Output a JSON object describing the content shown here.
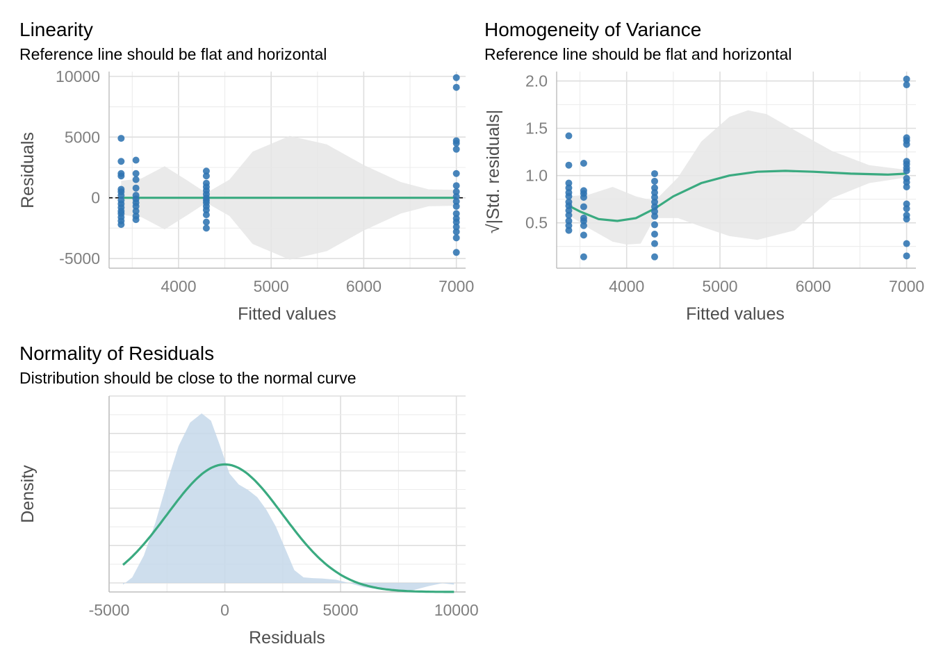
{
  "chart_data": [
    {
      "type": "scatter",
      "title": "Linearity",
      "subtitle": "Reference line should be flat and horizontal",
      "xlabel": "Fitted values",
      "ylabel": "Residuals",
      "xlim": [
        3250,
        7100
      ],
      "ylim": [
        -5800,
        10400
      ],
      "xticks": [
        4000,
        5000,
        6000,
        7000
      ],
      "xtick_labels": [
        "4000",
        "5000",
        "6000",
        "7000"
      ],
      "yticks": [
        -5000,
        0,
        5000,
        10000
      ],
      "ytick_labels": [
        "-5000",
        "0",
        "5000",
        "10000"
      ],
      "grid": true,
      "reference_line": 0,
      "points": [
        {
          "x": 3380,
          "ys": [
            4900,
            3000,
            2000,
            1800,
            700,
            500,
            200,
            -200,
            -500,
            -800,
            -1100,
            -1300,
            -1600,
            -1900,
            -2200
          ]
        },
        {
          "x": 3540,
          "ys": [
            3100,
            2000,
            1500,
            800,
            200,
            -100,
            -400,
            -700,
            -1100,
            -1500,
            -1800
          ]
        },
        {
          "x": 4300,
          "ys": [
            2200,
            1800,
            1200,
            900,
            600,
            300,
            0,
            -200,
            -400,
            -700,
            -1000,
            -1400,
            -2000,
            -2500
          ]
        },
        {
          "x": 7000,
          "ys": [
            9900,
            9100,
            4700,
            4500,
            4000,
            2000,
            1000,
            500,
            100,
            -300,
            -700,
            -1300,
            -1700,
            -2000,
            -2400,
            -2800,
            -3300,
            -4500
          ]
        }
      ],
      "smooth_y": [
        [
          3380,
          0
        ],
        [
          7000,
          0
        ]
      ],
      "band_upper": [
        [
          3380,
          1400
        ],
        [
          3600,
          1600
        ],
        [
          3850,
          2600
        ],
        [
          4100,
          1400
        ],
        [
          4300,
          400
        ],
        [
          4550,
          1500
        ],
        [
          4800,
          3800
        ],
        [
          5200,
          5100
        ],
        [
          5600,
          4400
        ],
        [
          6000,
          2700
        ],
        [
          6400,
          1300
        ],
        [
          6700,
          700
        ],
        [
          7000,
          650
        ]
      ],
      "band_lower": [
        [
          3380,
          -1400
        ],
        [
          3600,
          -1600
        ],
        [
          3850,
          -2600
        ],
        [
          4100,
          -1400
        ],
        [
          4300,
          -400
        ],
        [
          4550,
          -1500
        ],
        [
          4800,
          -3800
        ],
        [
          5200,
          -5100
        ],
        [
          5600,
          -4400
        ],
        [
          6000,
          -2700
        ],
        [
          6400,
          -1300
        ],
        [
          6700,
          -700
        ],
        [
          7000,
          -650
        ]
      ]
    },
    {
      "type": "scatter",
      "title": "Homogeneity of Variance",
      "subtitle": "Reference line should be flat and horizontal",
      "xlabel": "Fitted values",
      "ylabel": "|Std. residuals|",
      "ylabel_prefix": "√",
      "xlim": [
        3250,
        7100
      ],
      "ylim": [
        0.02,
        2.1
      ],
      "xticks": [
        4000,
        5000,
        6000,
        7000
      ],
      "xtick_labels": [
        "4000",
        "5000",
        "6000",
        "7000"
      ],
      "yticks": [
        0.5,
        1.0,
        1.5,
        2.0
      ],
      "ytick_labels": [
        "0.5",
        "1.0",
        "1.5",
        "2.0"
      ],
      "grid": true,
      "points": [
        {
          "x": 3380,
          "ys": [
            1.42,
            1.11,
            0.92,
            0.87,
            0.82,
            0.78,
            0.72,
            0.68,
            0.63,
            0.58,
            0.52,
            0.47,
            0.42
          ]
        },
        {
          "x": 3540,
          "ys": [
            1.13,
            0.84,
            0.81,
            0.77,
            0.67,
            0.55,
            0.52,
            0.47,
            0.37,
            0.14
          ]
        },
        {
          "x": 4300,
          "ys": [
            1.02,
            0.94,
            0.87,
            0.82,
            0.77,
            0.72,
            0.67,
            0.62,
            0.57,
            0.48,
            0.38,
            0.28,
            0.14
          ]
        },
        {
          "x": 7000,
          "ys": [
            2.02,
            1.96,
            1.4,
            1.37,
            1.33,
            1.15,
            1.12,
            1.08,
            1.05,
            0.97,
            0.93,
            0.88,
            0.7,
            0.65,
            0.58,
            0.54,
            0.28,
            0.15
          ]
        }
      ],
      "smooth": [
        [
          3380,
          0.68
        ],
        [
          3500,
          0.62
        ],
        [
          3700,
          0.54
        ],
        [
          3900,
          0.52
        ],
        [
          4100,
          0.55
        ],
        [
          4300,
          0.65
        ],
        [
          4500,
          0.78
        ],
        [
          4800,
          0.92
        ],
        [
          5100,
          1.0
        ],
        [
          5400,
          1.04
        ],
        [
          5700,
          1.05
        ],
        [
          6000,
          1.04
        ],
        [
          6400,
          1.02
        ],
        [
          6800,
          1.01
        ],
        [
          7000,
          1.02
        ]
      ],
      "band_upper": [
        [
          3380,
          0.78
        ],
        [
          3600,
          0.8
        ],
        [
          3850,
          0.88
        ],
        [
          4100,
          0.78
        ],
        [
          4300,
          0.73
        ],
        [
          4550,
          0.98
        ],
        [
          4800,
          1.36
        ],
        [
          5100,
          1.62
        ],
        [
          5300,
          1.69
        ],
        [
          5500,
          1.65
        ],
        [
          5800,
          1.48
        ],
        [
          6200,
          1.26
        ],
        [
          6600,
          1.11
        ],
        [
          7000,
          1.06
        ]
      ],
      "band_lower": [
        [
          3380,
          0.58
        ],
        [
          3600,
          0.44
        ],
        [
          3850,
          0.3
        ],
        [
          4000,
          0.27
        ],
        [
          4150,
          0.28
        ],
        [
          4300,
          0.55
        ],
        [
          4550,
          0.55
        ],
        [
          4800,
          0.46
        ],
        [
          5100,
          0.36
        ],
        [
          5400,
          0.32
        ],
        [
          5800,
          0.42
        ],
        [
          6200,
          0.76
        ],
        [
          6600,
          0.92
        ],
        [
          7000,
          0.98
        ]
      ]
    },
    {
      "type": "area",
      "title": "Normality of Residuals",
      "subtitle": "Distribution should be close to the normal curve",
      "xlabel": "Residuals",
      "ylabel": "Density",
      "xlim": [
        -5000,
        10400
      ],
      "ylim": [
        0,
        1.0
      ],
      "xticks": [
        -5000,
        0,
        5000,
        10000
      ],
      "xtick_labels": [
        "-5000",
        "0",
        "5000",
        "10000"
      ],
      "grid": true,
      "density": [
        [
          -4400,
          0.04
        ],
        [
          -4000,
          0.08
        ],
        [
          -3500,
          0.2
        ],
        [
          -3000,
          0.38
        ],
        [
          -2500,
          0.6
        ],
        [
          -2000,
          0.8
        ],
        [
          -1500,
          0.93
        ],
        [
          -1000,
          0.98
        ],
        [
          -600,
          0.94
        ],
        [
          -200,
          0.8
        ],
        [
          200,
          0.65
        ],
        [
          600,
          0.59
        ],
        [
          1000,
          0.56
        ],
        [
          1400,
          0.52
        ],
        [
          1800,
          0.45
        ],
        [
          2200,
          0.36
        ],
        [
          2600,
          0.24
        ],
        [
          3000,
          0.12
        ],
        [
          3400,
          0.08
        ],
        [
          3800,
          0.076
        ],
        [
          4200,
          0.074
        ],
        [
          4800,
          0.067
        ],
        [
          5400,
          0.048
        ],
        [
          6000,
          0.026
        ],
        [
          6800,
          0.012
        ],
        [
          7600,
          0.008
        ],
        [
          8200,
          0.012
        ],
        [
          8800,
          0.032
        ],
        [
          9400,
          0.048
        ],
        [
          9900,
          0.04
        ]
      ],
      "normal_curve": {
        "mean": 0,
        "sd": 2500,
        "peak": 0.7,
        "x_from": -4400,
        "x_to": 9900
      }
    }
  ]
}
